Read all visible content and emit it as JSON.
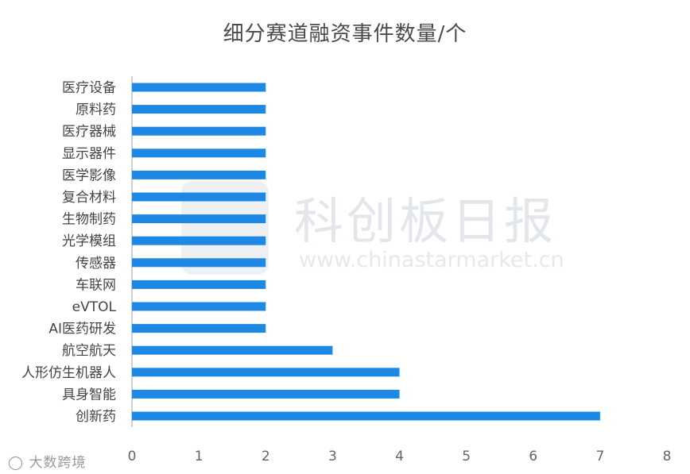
{
  "chart_data": {
    "type": "bar",
    "orientation": "horizontal",
    "title": "细分赛道融资事件数量/个",
    "categories": [
      "医疗设备",
      "原料药",
      "医疗器械",
      "显示器件",
      "医学影像",
      "复合材料",
      "生物制药",
      "光学模组",
      "传感器",
      "车联网",
      "eVTOL",
      "AI医药研发",
      "航空航天",
      "人形仿生机器人",
      "具身智能",
      "创新药"
    ],
    "values": [
      2,
      2,
      2,
      2,
      2,
      2,
      2,
      2,
      2,
      2,
      2,
      2,
      3,
      4,
      4,
      7
    ],
    "xlim": [
      0,
      8
    ],
    "xticks": [
      "0",
      "1",
      "2",
      "3",
      "4",
      "5",
      "6",
      "7",
      "8"
    ],
    "grid": false,
    "bar_color": "#1e88e5",
    "axis_color": "#bfbfbf"
  },
  "watermark": {
    "name": "科创板日报",
    "url": "www.chinastarmarket.cn"
  },
  "footer_logo": {
    "text": "大数跨境"
  }
}
